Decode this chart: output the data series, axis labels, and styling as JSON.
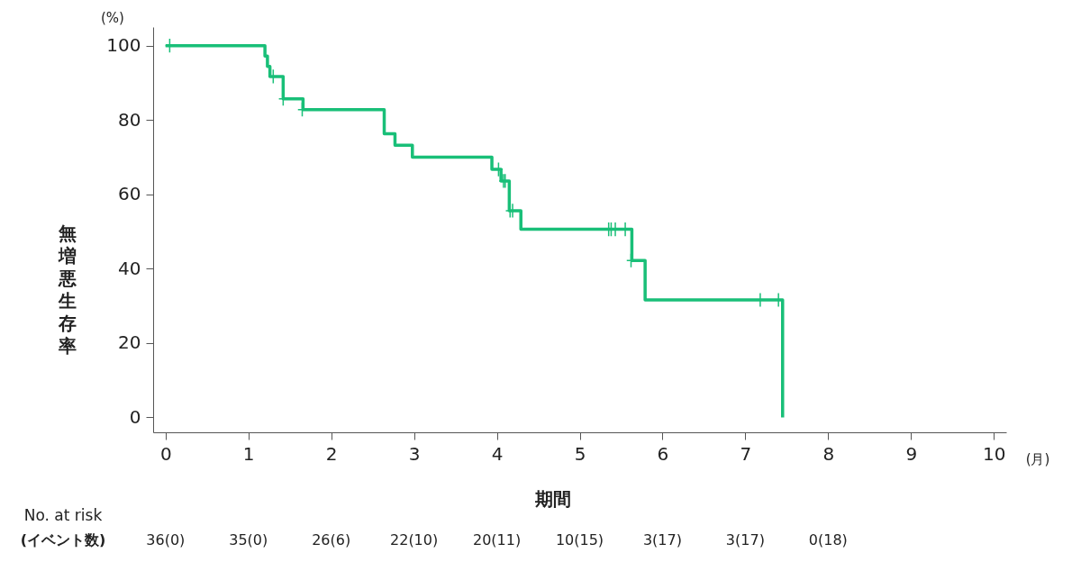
{
  "chart_data": {
    "type": "step",
    "xlabel": "期間",
    "ylabel": "無増悪生存率",
    "xlim": [
      -0.15,
      10.15
    ],
    "xticks": [
      0,
      1,
      2,
      3,
      4,
      5,
      6,
      7,
      8,
      9,
      10
    ],
    "ylim": [
      -4,
      105
    ],
    "yticks": [
      0,
      20,
      40,
      60,
      80,
      100
    ],
    "grid": false,
    "line_style": "solid",
    "series": [
      {
        "color": "#19bf78",
        "x": [
          0,
          1.2,
          1.23,
          1.26,
          1.42,
          1.66,
          2.64,
          2.77,
          2.98,
          3.94,
          4.05,
          4.15,
          4.29,
          5.63,
          5.79,
          7.45
        ],
        "values": [
          100,
          97.2,
          94.4,
          91.7,
          85.7,
          82.8,
          76.3,
          73.2,
          70,
          66.7,
          63.6,
          55.6,
          50.6,
          42.2,
          31.6,
          0
        ]
      },
      {
        "type": "scatter",
        "marker": "cross",
        "color": "#19bf78",
        "x": [
          0.05,
          1.3,
          1.42,
          1.65,
          4.02,
          4.08,
          4.1,
          4.16,
          4.19,
          5.35,
          5.38,
          5.43,
          5.55,
          5.62,
          7.18,
          7.4
        ],
        "values": [
          100,
          91.7,
          85.7,
          82.8,
          66.7,
          63.6,
          63.6,
          55.6,
          55.6,
          50.6,
          50.6,
          50.6,
          50.6,
          42.2,
          31.6,
          31.6
        ]
      }
    ],
    "annotations": [
      "(%)",
      "(月)",
      "No. at risk",
      "(イベント数)",
      "36(0)",
      "35(0)",
      "26(6)",
      "22(10)",
      "20(11)",
      "10(15)",
      "3(17)",
      "3(17)",
      "0(18)"
    ]
  }
}
